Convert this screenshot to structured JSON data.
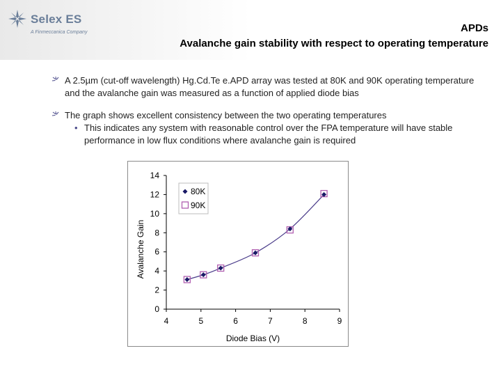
{
  "logo": {
    "name": "Selex ES",
    "tagline": "A Finmeccanica Company"
  },
  "slide": {
    "title_line1": "APDs",
    "title_line2": "Avalanche gain stability with respect to operating temperature",
    "bullets": [
      "A 2.5µm (cut-off wavelength) Hg.Cd.Te e.APD array was tested at 80K and 90K operating temperature and the avalanche gain was measured as a function of applied diode bias",
      "The graph shows excellent consistency between the two operating temperatures"
    ],
    "sub_bullets": [
      "This indicates any system with reasonable control over the FPA temperature will have stable performance in low flux conditions where avalanche gain is required"
    ]
  },
  "colors": {
    "series_80k": "#1a1a66",
    "series_90k": "#b05fb0",
    "fit_line": "#4a3c8a",
    "bullet_accent": "#4a4a8a"
  },
  "chart_data": {
    "type": "scatter",
    "xlabel": "Diode Bias (V)",
    "ylabel": "Avalanche Gain",
    "xlim": [
      4,
      9
    ],
    "ylim": [
      0,
      14
    ],
    "xticks": [
      4,
      5,
      6,
      7,
      8,
      9
    ],
    "yticks": [
      0,
      2,
      4,
      6,
      8,
      10,
      12,
      14
    ],
    "grid": false,
    "legend": "top-left",
    "trendline": true,
    "series": [
      {
        "name": "80K",
        "marker": "diamond",
        "x": [
          4.6,
          5.07,
          5.57,
          6.57,
          7.57,
          8.55
        ],
        "y": [
          3.1,
          3.6,
          4.3,
          5.9,
          8.4,
          12.0
        ]
      },
      {
        "name": "90K",
        "marker": "square",
        "x": [
          4.6,
          5.07,
          5.57,
          6.57,
          7.57,
          8.55
        ],
        "y": [
          3.1,
          3.6,
          4.3,
          5.9,
          8.3,
          12.1
        ]
      }
    ]
  }
}
